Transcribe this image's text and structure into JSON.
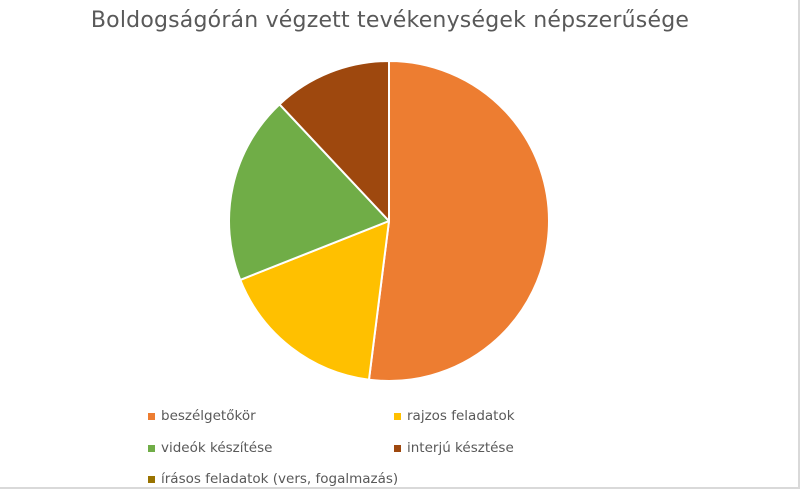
{
  "chart_data": {
    "type": "pie",
    "title": "Boldogságórán végzett tevékenységek népszerűsége",
    "categories": [
      "beszélgetőkör",
      "rajzos feladatok",
      "videók készítése",
      "interjú késztése",
      "írásos feladatok (vers, fogalmazás)"
    ],
    "values": [
      52,
      17,
      19,
      12,
      0
    ],
    "colors": [
      "#ed7d31",
      "#ffc000",
      "#70ad47",
      "#9e480e",
      "#997300"
    ],
    "legend_position": "bottom",
    "start_angle_deg": 0,
    "direction": "clockwise"
  }
}
